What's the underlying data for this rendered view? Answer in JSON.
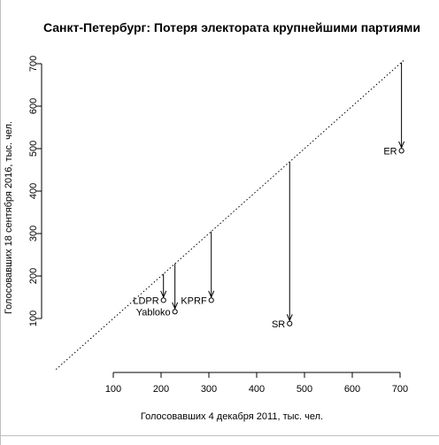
{
  "chart_data": {
    "type": "scatter",
    "title": "Санкт-Петербург: Потеря электората крупнейшими партиями",
    "xlabel": "Голосовавших 4 декабря 2011, тыс. чел.",
    "ylabel": "Голосовавших 18 сентября 2016, тыс. чел.",
    "xlim": [
      100,
      700
    ],
    "ylim": [
      100,
      700
    ],
    "x_ticks": [
      100,
      200,
      300,
      400,
      500,
      600,
      700
    ],
    "y_ticks": [
      100,
      200,
      300,
      400,
      500,
      600,
      700
    ],
    "reference_line": "y = x",
    "grid": false,
    "points": [
      {
        "label": "ER",
        "x": 703,
        "y": 495,
        "label_side": "left"
      },
      {
        "label": "SR",
        "x": 469,
        "y": 88,
        "label_side": "left"
      },
      {
        "label": "KPRF",
        "x": 305,
        "y": 143,
        "label_side": "left"
      },
      {
        "label": "LDPR",
        "x": 205,
        "y": 143,
        "label_side": "left"
      },
      {
        "label": "Yabloko",
        "x": 229,
        "y": 116,
        "label_side": "left"
      }
    ]
  }
}
